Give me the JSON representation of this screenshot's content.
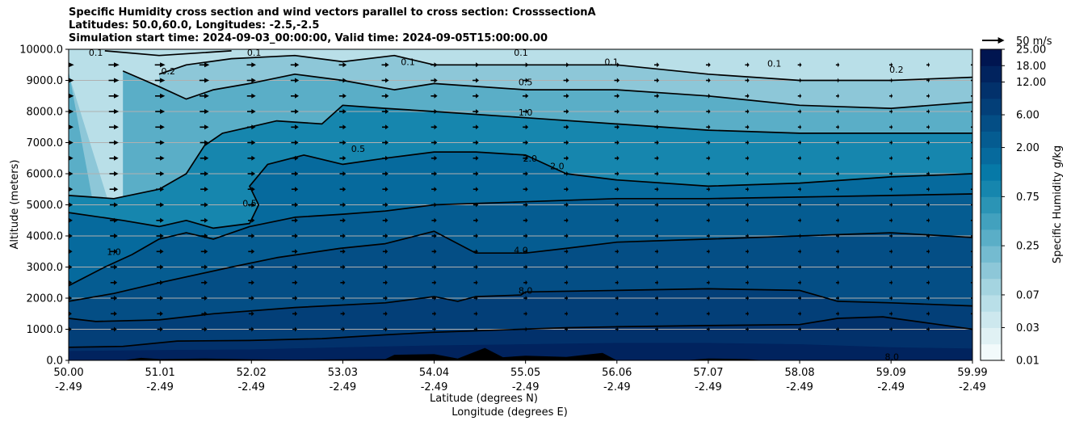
{
  "title": {
    "line1": "Specific Humidity cross section and wind vectors parallel to cross section: CrosssectionA",
    "line2": "Latitudes: 50.0,60.0, Longitudes: -2.5,-2.5",
    "line3": "Simulation start time: 2024-09-03_00:00:00, Valid time: 2024-09-05T15:00:00.00"
  },
  "colors": {
    "ramp": [
      "#f2fafb",
      "#e0f1f4",
      "#cde8ee",
      "#b9dfe8",
      "#a4d4e0",
      "#8dc7d8",
      "#74bbd0",
      "#5aaec7",
      "#42a1be",
      "#2b94b5",
      "#1686ae",
      "#0679a7",
      "#066a9d",
      "#055c91",
      "#044e85",
      "#033f78",
      "#02316b",
      "#01235e",
      "#001550"
    ],
    "terrain": "#000000",
    "gridline": "#b0b0b0"
  },
  "chart_data": {
    "type": "contour cross-section with wind vectors",
    "xlabel_lat": "Latitude (degrees N)",
    "xlabel_lon": "Longitude (degrees E)",
    "ylabel": "Altitude (meters)",
    "xlim": [
      50.0,
      59.99
    ],
    "ylim": [
      0,
      10000
    ],
    "x_ticks": [
      {
        "lat": "50.00",
        "lon": "-2.49",
        "value": 50.0
      },
      {
        "lat": "51.01",
        "lon": "-2.49",
        "value": 51.01
      },
      {
        "lat": "52.02",
        "lon": "-2.49",
        "value": 52.02
      },
      {
        "lat": "53.03",
        "lon": "-2.49",
        "value": 53.03
      },
      {
        "lat": "54.04",
        "lon": "-2.49",
        "value": 54.04
      },
      {
        "lat": "55.05",
        "lon": "-2.49",
        "value": 55.05
      },
      {
        "lat": "56.06",
        "lon": "-2.49",
        "value": 56.06
      },
      {
        "lat": "57.07",
        "lon": "-2.49",
        "value": 57.07
      },
      {
        "lat": "58.08",
        "lon": "-2.49",
        "value": 58.08
      },
      {
        "lat": "59.09",
        "lon": "-2.49",
        "value": 59.09
      },
      {
        "lat": "59.99",
        "lon": "-2.49",
        "value": 59.99
      }
    ],
    "y_ticks": [
      {
        "label": "0.0",
        "value": 0
      },
      {
        "label": "1000.0",
        "value": 1000
      },
      {
        "label": "2000.0",
        "value": 2000
      },
      {
        "label": "3000.0",
        "value": 3000
      },
      {
        "label": "4000.0",
        "value": 4000
      },
      {
        "label": "5000.0",
        "value": 5000
      },
      {
        "label": "6000.0",
        "value": 6000
      },
      {
        "label": "7000.0",
        "value": 7000
      },
      {
        "label": "8000.0",
        "value": 8000
      },
      {
        "label": "9000.0",
        "value": 9000
      },
      {
        "label": "10000.0",
        "value": 10000
      }
    ],
    "colorbar": {
      "label": "Specific Humidity g/kg",
      "levels": [
        0.01,
        0.02,
        0.03,
        0.05,
        0.07,
        0.1,
        0.15,
        0.25,
        0.35,
        0.5,
        0.75,
        1,
        1.5,
        2,
        3,
        6,
        9,
        12,
        18,
        25
      ],
      "tick_labels": [
        "0.01",
        "0.03",
        "0.07",
        "0.25",
        "0.75",
        "2.00",
        "6.00",
        "12.00",
        "18.00",
        "25.00"
      ],
      "tick_levels": [
        0.01,
        0.03,
        0.07,
        0.25,
        0.75,
        2,
        6,
        12,
        18,
        25
      ]
    },
    "quiver_key": {
      "label": "50 m/s",
      "speed": 50
    },
    "wind": {
      "x_cols": [
        50.0,
        50.5,
        51.01,
        51.5,
        52.02,
        52.5,
        53.03,
        53.5,
        54.04,
        54.5,
        55.05,
        55.5,
        56.06,
        56.5,
        57.07,
        57.5,
        58.08,
        58.5,
        59.09,
        59.5,
        59.99
      ],
      "levels": [
        1000,
        1500,
        2000,
        2500,
        3000,
        3500,
        4000,
        4500,
        5000,
        5500,
        6000,
        6500,
        7000,
        7500,
        8000,
        8500,
        9000,
        9500
      ],
      "col_speeds": [
        28,
        28,
        27,
        26,
        24,
        22,
        20,
        19,
        18,
        17,
        16,
        15,
        14,
        13,
        12,
        11,
        10,
        9,
        9,
        8,
        8
      ]
    },
    "contour_lines": [
      {
        "label": "8.0",
        "points": [
          [
            50.0,
            420
          ],
          [
            50.6,
            450
          ],
          [
            51.2,
            620
          ],
          [
            52.0,
            640
          ],
          [
            52.8,
            700
          ],
          [
            53.5,
            820
          ],
          [
            54.0,
            900
          ],
          [
            55.0,
            1000
          ],
          [
            55.5,
            1050
          ],
          [
            56.06,
            1080
          ],
          [
            57.07,
            1120
          ],
          [
            58.08,
            1150
          ],
          [
            58.5,
            1350
          ],
          [
            59.0,
            1400
          ],
          [
            59.5,
            1200
          ],
          [
            59.99,
            1000
          ]
        ]
      },
      {
        "label": "8.0",
        "points": [
          [
            50.0,
            1350
          ],
          [
            50.3,
            1250
          ],
          [
            51.0,
            1300
          ],
          [
            51.6,
            1500
          ],
          [
            52.5,
            1700
          ],
          [
            53.5,
            1850
          ],
          [
            54.04,
            2050
          ],
          [
            54.3,
            1900
          ],
          [
            54.5,
            2050
          ],
          [
            55.0,
            2100
          ],
          [
            55.05,
            2200
          ],
          [
            56.06,
            2250
          ],
          [
            57.07,
            2300
          ],
          [
            58.08,
            2250
          ],
          [
            58.5,
            1900
          ],
          [
            59.09,
            1850
          ],
          [
            59.99,
            1750
          ]
        ]
      },
      {
        "label": "4.0",
        "points": [
          [
            50.0,
            1900
          ],
          [
            50.5,
            2150
          ],
          [
            51.01,
            2500
          ],
          [
            51.8,
            3000
          ],
          [
            52.3,
            3300
          ],
          [
            53.0,
            3600
          ],
          [
            53.5,
            3750
          ],
          [
            54.04,
            4150
          ],
          [
            54.5,
            3450
          ],
          [
            55.05,
            3450
          ],
          [
            55.5,
            3600
          ],
          [
            56.06,
            3800
          ],
          [
            57.07,
            3900
          ],
          [
            58.08,
            4000
          ],
          [
            59.09,
            4100
          ],
          [
            59.99,
            3950
          ]
        ]
      },
      {
        "label": "1.0",
        "points": [
          [
            50.0,
            2400
          ],
          [
            50.4,
            3000
          ],
          [
            50.7,
            3400
          ],
          [
            51.0,
            3900
          ],
          [
            51.3,
            4100
          ],
          [
            51.6,
            3900
          ],
          [
            52.0,
            4300
          ],
          [
            52.5,
            4600
          ],
          [
            53.03,
            4700
          ],
          [
            53.5,
            4800
          ],
          [
            54.04,
            5000
          ],
          [
            55.05,
            5100
          ],
          [
            56.06,
            5200
          ],
          [
            57.07,
            5200
          ],
          [
            58.08,
            5250
          ],
          [
            59.09,
            5300
          ],
          [
            59.99,
            5350
          ]
        ]
      },
      {
        "label": "2.0",
        "points": [
          [
            50.0,
            4750
          ],
          [
            50.6,
            4500
          ],
          [
            51.0,
            4300
          ],
          [
            51.3,
            4500
          ],
          [
            51.6,
            4250
          ],
          [
            52.0,
            4400
          ],
          [
            52.1,
            5000
          ],
          [
            52.0,
            5600
          ],
          [
            52.2,
            6300
          ],
          [
            52.6,
            6600
          ],
          [
            53.03,
            6300
          ],
          [
            53.5,
            6500
          ],
          [
            54.04,
            6700
          ],
          [
            54.5,
            6700
          ],
          [
            55.05,
            6600
          ],
          [
            55.5,
            6000
          ],
          [
            56.06,
            5800
          ],
          [
            57.07,
            5600
          ],
          [
            58.08,
            5700
          ],
          [
            59.09,
            5900
          ],
          [
            59.99,
            6000
          ]
        ]
      },
      {
        "label": "1.0",
        "points": [
          [
            50.0,
            5300
          ],
          [
            50.5,
            5200
          ],
          [
            51.0,
            5500
          ],
          [
            51.3,
            6000
          ],
          [
            51.5,
            6900
          ],
          [
            51.7,
            7300
          ],
          [
            52.0,
            7500
          ],
          [
            52.3,
            7700
          ],
          [
            52.8,
            7600
          ],
          [
            53.03,
            8200
          ],
          [
            53.5,
            8100
          ],
          [
            54.04,
            8000
          ],
          [
            55.05,
            7800
          ],
          [
            56.06,
            7600
          ],
          [
            57.07,
            7400
          ],
          [
            58.08,
            7300
          ],
          [
            59.09,
            7300
          ],
          [
            59.99,
            7300
          ]
        ]
      },
      {
        "label": "0.5",
        "points": [
          [
            50.6,
            9300
          ],
          [
            51.0,
            8800
          ],
          [
            51.3,
            8400
          ],
          [
            51.6,
            8700
          ],
          [
            52.0,
            8900
          ],
          [
            52.5,
            9200
          ],
          [
            53.03,
            9000
          ],
          [
            53.6,
            8700
          ],
          [
            54.04,
            8900
          ],
          [
            55.05,
            8700
          ],
          [
            56.06,
            8700
          ],
          [
            57.07,
            8500
          ],
          [
            58.08,
            8200
          ],
          [
            59.09,
            8100
          ],
          [
            59.99,
            8300
          ]
        ]
      },
      {
        "label": "0.2",
        "points": [
          [
            51.0,
            9200
          ],
          [
            51.3,
            9500
          ],
          [
            51.8,
            9700
          ],
          [
            52.5,
            9800
          ],
          [
            53.03,
            9600
          ],
          [
            53.6,
            9800
          ],
          [
            54.04,
            9500
          ],
          [
            55.05,
            9500
          ],
          [
            56.06,
            9500
          ],
          [
            57.07,
            9200
          ],
          [
            58.08,
            9000
          ],
          [
            59.09,
            9000
          ],
          [
            59.99,
            9100
          ]
        ]
      },
      {
        "label": "0.1",
        "points": [
          [
            50.4,
            9950
          ],
          [
            51.0,
            9800
          ],
          [
            51.8,
            9950
          ]
        ]
      }
    ],
    "terrain": [
      [
        50.0,
        0
      ],
      [
        50.6,
        0
      ],
      [
        50.8,
        80
      ],
      [
        51.01,
        40
      ],
      [
        51.5,
        60
      ],
      [
        52.02,
        30
      ],
      [
        52.5,
        20
      ],
      [
        53.03,
        30
      ],
      [
        53.5,
        40
      ],
      [
        53.6,
        180
      ],
      [
        54.04,
        200
      ],
      [
        54.3,
        60
      ],
      [
        54.6,
        400
      ],
      [
        54.8,
        100
      ],
      [
        55.05,
        150
      ],
      [
        55.5,
        110
      ],
      [
        55.9,
        240
      ],
      [
        56.06,
        0
      ],
      [
        56.8,
        0
      ],
      [
        57.07,
        60
      ],
      [
        57.5,
        40
      ],
      [
        57.7,
        0
      ],
      [
        59.99,
        0
      ]
    ],
    "contour_label_positions": [
      {
        "label": "0.1",
        "x": 50.3,
        "y": 9900
      },
      {
        "label": "0.2",
        "x": 51.1,
        "y": 9300
      },
      {
        "label": "0.1",
        "x": 52.05,
        "y": 9900
      },
      {
        "label": "0.1",
        "x": 53.75,
        "y": 9600
      },
      {
        "label": "0.1",
        "x": 55.0,
        "y": 9900
      },
      {
        "label": "0.1",
        "x": 56.0,
        "y": 9600
      },
      {
        "label": "0.1",
        "x": 57.8,
        "y": 9550
      },
      {
        "label": "0.2",
        "x": 59.15,
        "y": 9350
      },
      {
        "label": "0.5",
        "x": 55.05,
        "y": 8950
      },
      {
        "label": "1.0",
        "x": 55.05,
        "y": 7970
      },
      {
        "label": "0.5",
        "x": 53.2,
        "y": 6800
      },
      {
        "label": "2.0",
        "x": 55.1,
        "y": 6500
      },
      {
        "label": "2.0",
        "x": 55.4,
        "y": 6250
      },
      {
        "label": "0.5",
        "x": 52.0,
        "y": 5050
      },
      {
        "label": "1.0",
        "x": 50.5,
        "y": 3500
      },
      {
        "label": "4.0",
        "x": 55.0,
        "y": 3550
      },
      {
        "label": "8.0",
        "x": 55.05,
        "y": 2250
      },
      {
        "label": "8.0",
        "x": 59.1,
        "y": 120
      }
    ]
  }
}
